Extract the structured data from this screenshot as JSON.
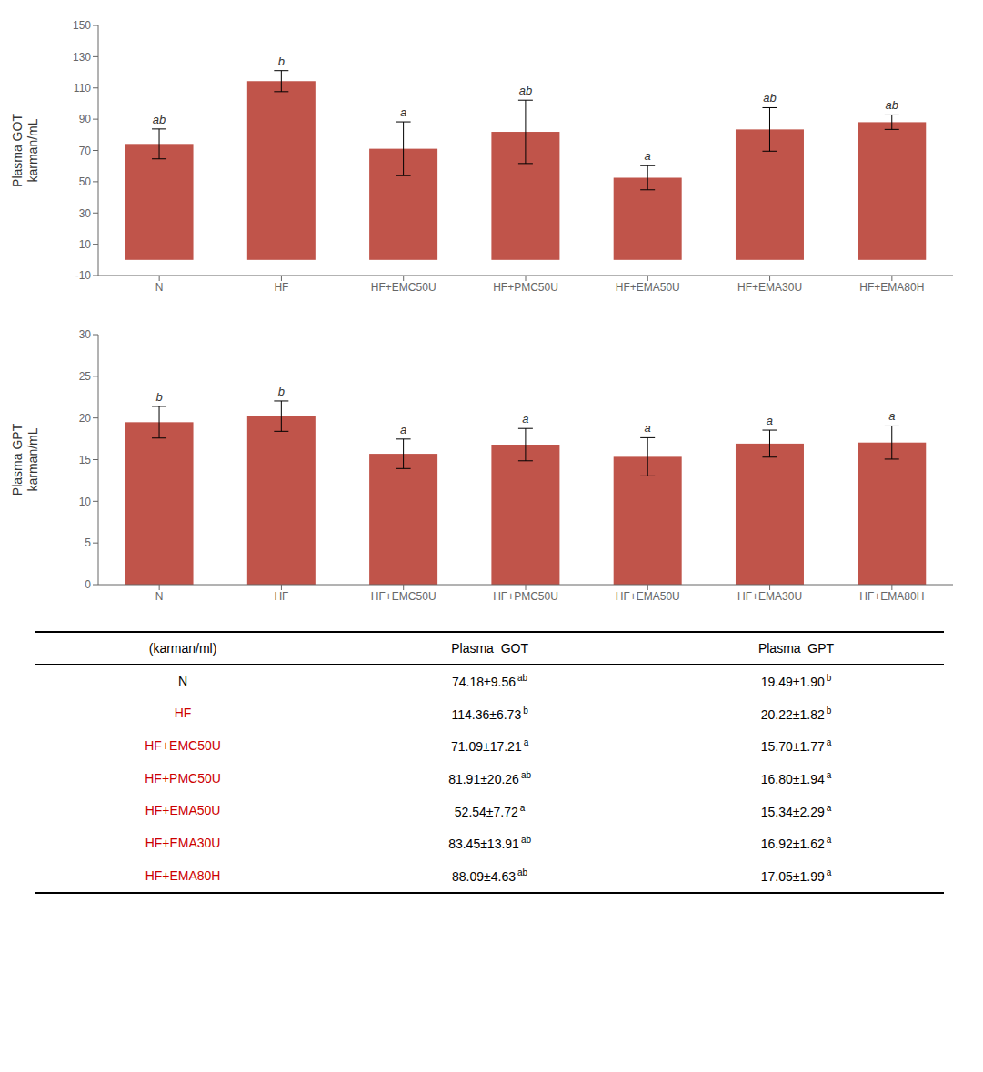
{
  "chart_data": [
    {
      "type": "bar",
      "ylabel": "Plasma GOT\nkarman/mL",
      "categories": [
        "N",
        "HF",
        "HF+EMC50U",
        "HF+PMC50U",
        "HF+EMA50U",
        "HF+EMA30U",
        "HF+EMA80H"
      ],
      "values": [
        74.18,
        114.36,
        71.09,
        81.91,
        52.54,
        83.45,
        88.09
      ],
      "errors": [
        9.56,
        6.73,
        17.21,
        20.26,
        7.72,
        13.91,
        4.63
      ],
      "annotations": [
        "ab",
        "b",
        "a",
        "ab",
        "a",
        "ab",
        "ab"
      ],
      "color": "#c0544a",
      "ylim": [
        -10,
        150
      ],
      "yticks": [
        -10,
        10,
        30,
        50,
        70,
        90,
        110,
        130,
        150
      ],
      "grid": false
    },
    {
      "type": "bar",
      "ylabel": "Plasma GPT\nkarman/mL",
      "categories": [
        "N",
        "HF",
        "HF+EMC50U",
        "HF+PMC50U",
        "HF+EMA50U",
        "HF+EMA30U",
        "HF+EMA80H"
      ],
      "values": [
        19.49,
        20.22,
        15.7,
        16.8,
        15.34,
        16.92,
        17.05
      ],
      "errors": [
        1.9,
        1.82,
        1.77,
        1.94,
        2.29,
        1.62,
        1.99
      ],
      "annotations": [
        "b",
        "b",
        "a",
        "a",
        "a",
        "a",
        "a"
      ],
      "color": "#c0544a",
      "ylim": [
        0,
        30
      ],
      "yticks": [
        0,
        5,
        10,
        15,
        20,
        25,
        30
      ],
      "grid": false
    },
    {
      "type": "table",
      "columns": [
        "(karman/ml)",
        "Plasma  GOT",
        "Plasma  GPT"
      ],
      "rows": [
        [
          "N",
          "74.18±9.56",
          "ab",
          "19.49±1.90",
          "b"
        ],
        [
          "HF",
          "114.36±6.73",
          "b",
          "20.22±1.82",
          "b"
        ],
        [
          "HF+EMC50U",
          "71.09±17.21",
          "a",
          "15.70±1.77",
          "a"
        ],
        [
          "HF+PMC50U",
          "81.91±20.26",
          "ab",
          "16.80±1.94",
          "a"
        ],
        [
          "HF+EMA50U",
          "52.54±7.72",
          "a",
          "15.34±2.29",
          "a"
        ],
        [
          "HF+EMA30U",
          "83.45±13.91",
          "ab",
          "16.92±1.62",
          "a"
        ],
        [
          "HF+EMA80H",
          "88.09±4.63",
          "ab",
          "17.05±1.99",
          "a"
        ]
      ],
      "colors": [
        "#000000",
        "#cc0000",
        "#cc0000",
        "#cc0000",
        "#cc0000",
        "#cc0000",
        "#cc0000"
      ]
    }
  ]
}
